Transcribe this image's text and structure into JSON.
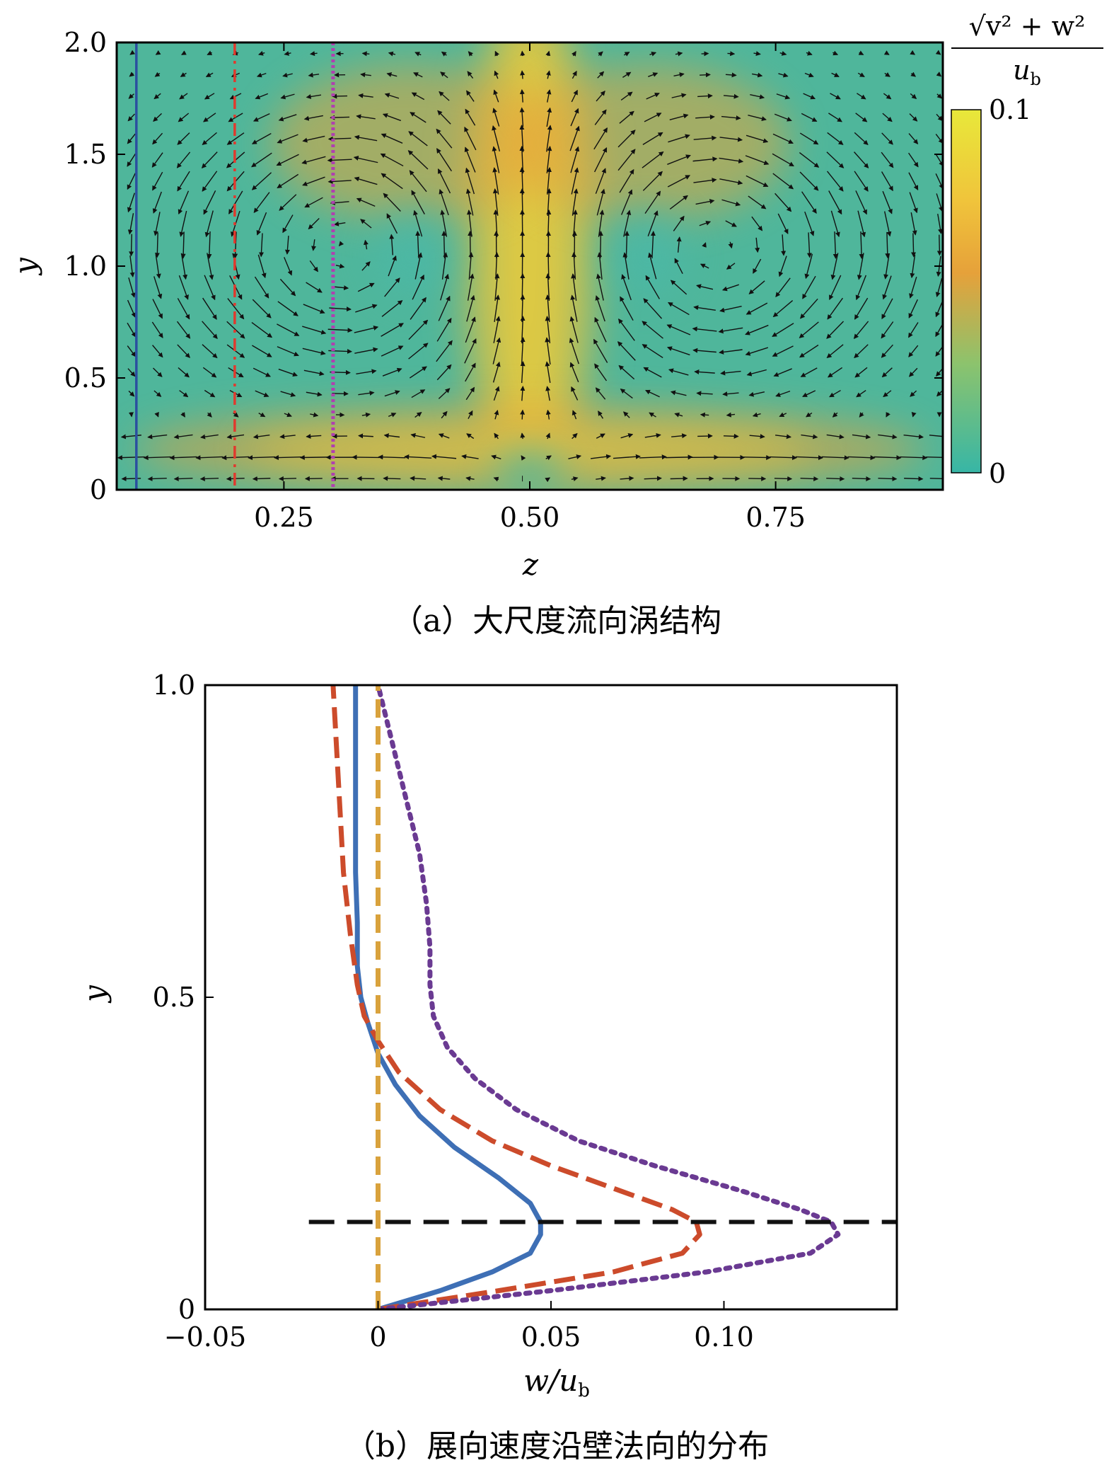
{
  "chart_data": [
    {
      "type": "vector-field-contour",
      "caption": "（a）大尺度流向涡结构",
      "xlabel": "z",
      "ylabel": "y",
      "xlim": [
        0.08,
        0.92
      ],
      "ylim": [
        0,
        2.0
      ],
      "xticks": [
        "0.25",
        "0.50",
        "0.75"
      ],
      "xtick_values": [
        0.25,
        0.5,
        0.75
      ],
      "yticks": [
        "0",
        "0.5",
        "1.0",
        "1.5",
        "2.0"
      ],
      "ytick_values": [
        0,
        0.5,
        1.0,
        1.5,
        2.0
      ],
      "colorbar": {
        "label_num": "√v² + w²",
        "label_den": "u_b",
        "label_den_base": "u",
        "label_den_sub": "b",
        "min_label": "0",
        "max_label": "0.1",
        "range": [
          0,
          0.1
        ],
        "colors": [
          "#37b6a6",
          "#8cc36d",
          "#e6a13a",
          "#f0c43b",
          "#e8e83a"
        ]
      },
      "vortex_centers": [
        {
          "z": 0.38,
          "y": 1.08
        },
        {
          "z": 0.62,
          "y": 1.08
        }
      ],
      "vertical_lines": [
        {
          "z": 0.1,
          "style": "solid",
          "color": "#2a4fa0"
        },
        {
          "z": 0.2,
          "style": "dashdot",
          "color": "#e03a2e"
        },
        {
          "z": 0.3,
          "style": "dotted",
          "color": "#b03fb0"
        }
      ]
    },
    {
      "type": "line",
      "caption": "（b）展向速度沿壁法向的分布",
      "xlabel": "w/u_b",
      "xlabel_base": "w/u",
      "xlabel_sub": "b",
      "ylabel": "y",
      "xlim": [
        -0.05,
        0.15
      ],
      "ylim": [
        0,
        1.0
      ],
      "xticks": [
        "−0.05",
        "0",
        "0.05",
        "0.10"
      ],
      "xtick_values": [
        -0.05,
        0,
        0.05,
        0.1
      ],
      "yticks": [
        "0",
        "0.5",
        "1.0"
      ],
      "ytick_values": [
        0,
        0.5,
        1.0
      ],
      "series": [
        {
          "style": "solid",
          "color": "#3e6fb5",
          "y": [
            0,
            0.03,
            0.06,
            0.09,
            0.12,
            0.14,
            0.17,
            0.21,
            0.26,
            0.31,
            0.36,
            0.41,
            0.46,
            0.5,
            0.55,
            0.62,
            0.7,
            0.8,
            0.9,
            1.0
          ],
          "x": [
            0,
            0.018,
            0.033,
            0.044,
            0.047,
            0.047,
            0.044,
            0.035,
            0.022,
            0.012,
            0.005,
            0.0,
            -0.003,
            -0.005,
            -0.006,
            -0.006,
            -0.0065,
            -0.0065,
            -0.0065,
            -0.0065
          ]
        },
        {
          "style": "dashed",
          "color": "#cc4b2b",
          "y": [
            0,
            0.03,
            0.06,
            0.09,
            0.12,
            0.14,
            0.16,
            0.19,
            0.23,
            0.27,
            0.32,
            0.38,
            0.43,
            0.47,
            0.52,
            0.6,
            0.7,
            0.8,
            0.9,
            1.0
          ],
          "x": [
            0,
            0.035,
            0.068,
            0.088,
            0.093,
            0.092,
            0.085,
            0.07,
            0.05,
            0.033,
            0.018,
            0.006,
            0.0,
            -0.004,
            -0.006,
            -0.008,
            -0.01,
            -0.011,
            -0.012,
            -0.013
          ]
        },
        {
          "style": "dotted",
          "color": "#6a3a92",
          "y": [
            0,
            0.03,
            0.06,
            0.09,
            0.12,
            0.14,
            0.16,
            0.19,
            0.23,
            0.27,
            0.32,
            0.37,
            0.42,
            0.47,
            0.52,
            0.58,
            0.65,
            0.73,
            0.82,
            0.91,
            1.0
          ],
          "x": [
            0,
            0.05,
            0.095,
            0.125,
            0.133,
            0.131,
            0.122,
            0.105,
            0.08,
            0.058,
            0.04,
            0.028,
            0.02,
            0.016,
            0.015,
            0.015,
            0.014,
            0.012,
            0.008,
            0.004,
            0.0
          ]
        },
        {
          "style": "vertical-dashed",
          "color": "#d9a23c",
          "x": [
            0,
            0
          ],
          "y": [
            0,
            1.0
          ]
        },
        {
          "style": "horizontal-dashed",
          "color": "#111111",
          "x": [
            -0.02,
            0.15
          ],
          "y": [
            0.14,
            0.14
          ]
        }
      ]
    }
  ]
}
